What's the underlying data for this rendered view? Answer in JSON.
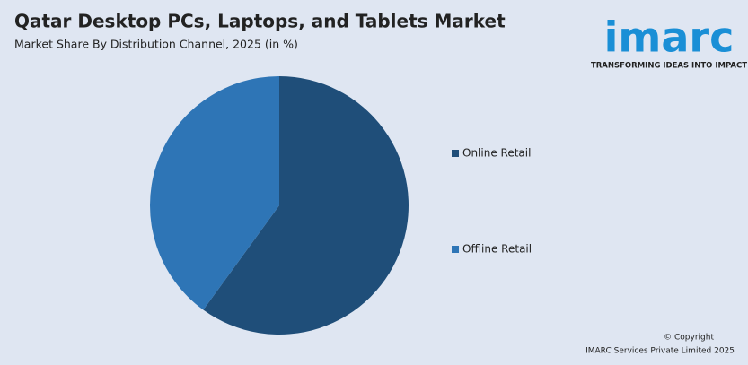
{
  "chart_data": {
    "type": "pie",
    "title": "Qatar Desktop PCs, Laptops, and Tablets Market",
    "subtitle": "Market Share By Distribution Channel, 2025 (in %)",
    "categories": [
      "Online Retail",
      "Offline Retail"
    ],
    "values": [
      60,
      40
    ],
    "colors": [
      "#1f4e79",
      "#2e75b6"
    ]
  },
  "logo": {
    "name": "imarc",
    "tagline": "TRANSFORMING IDEAS INTO IMPACT"
  },
  "footer": {
    "copyright": "© Copyright",
    "owner": "IMARC Services Private Limited 2025"
  }
}
